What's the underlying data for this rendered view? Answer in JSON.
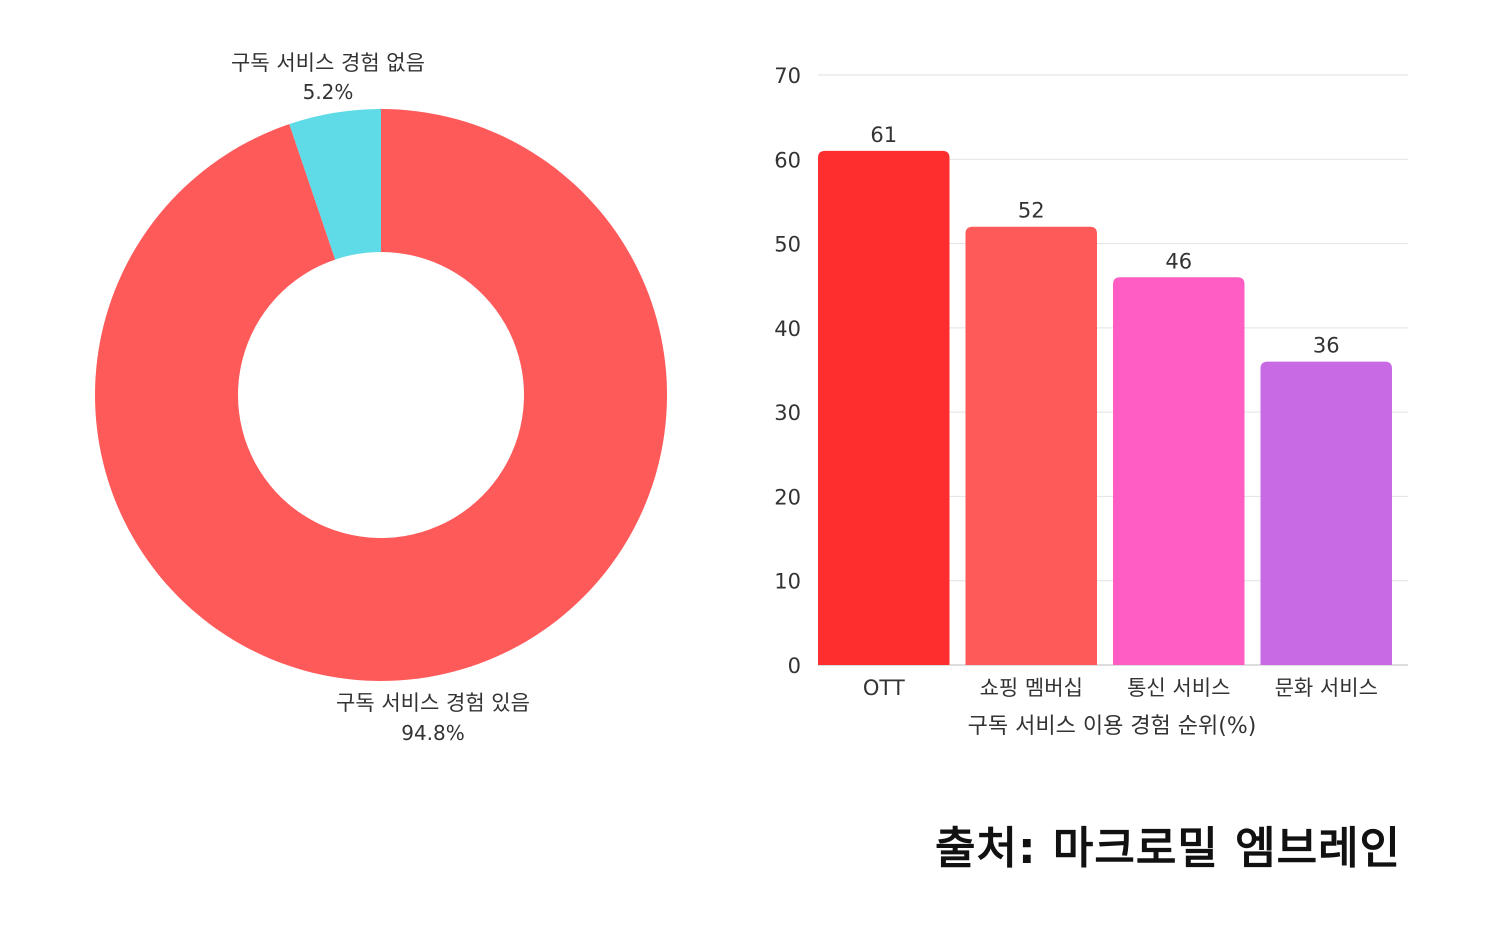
{
  "chart_data": [
    {
      "type": "pie",
      "donut": true,
      "slices": [
        {
          "label": "구독 서비스 경험 없음",
          "value": 5.2,
          "value_label": "5.2%",
          "color": "#5EDBE6"
        },
        {
          "label": "구독 서비스 경험 있음",
          "value": 94.8,
          "value_label": "94.8%",
          "color": "#FF5A5A"
        }
      ]
    },
    {
      "type": "bar",
      "categories": [
        "OTT",
        "쇼핑 멤버십",
        "통신 서비스",
        "문화 서비스"
      ],
      "values": [
        61,
        52,
        46,
        36
      ],
      "value_labels": [
        "61",
        "52",
        "46",
        "36"
      ],
      "colors": [
        "#FF2E2E",
        "#FF5A5A",
        "#FF5CC4",
        "#C86AE4"
      ],
      "xlabel": "구독 서비스 이용 경험 순위(%)",
      "ylabel": "",
      "ylim": [
        0,
        70
      ],
      "yticks": [
        0,
        10,
        20,
        30,
        40,
        50,
        60,
        70
      ],
      "grid": true
    }
  ],
  "source": "출처: 마크로밀 엠브레인"
}
